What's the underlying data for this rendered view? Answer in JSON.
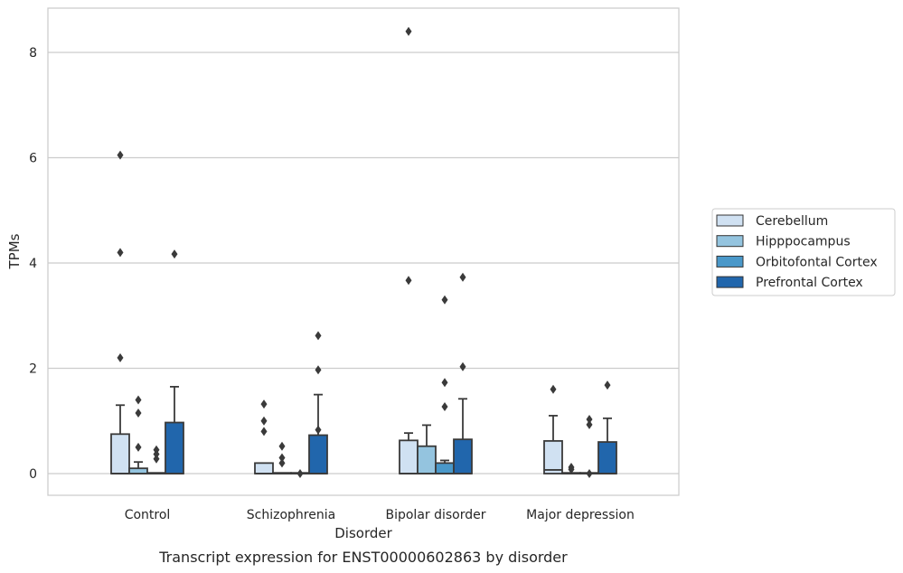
{
  "chart_data": {
    "type": "box",
    "title": "Transcript expression for ENST00000602863 by disorder",
    "xlabel": "Disorder",
    "ylabel": "TPMs",
    "ylim": [
      -0.4,
      8.85
    ],
    "yticks": [
      0,
      2,
      4,
      6,
      8
    ],
    "grid": "horizontal",
    "legend_position": "right",
    "categories": [
      "Control",
      "Schizophrenia",
      "Bipolar disorder",
      "Major depression"
    ],
    "series": [
      {
        "name": "Cerebellum",
        "color": "#d0e1f2",
        "boxes": [
          {
            "q1": 0,
            "median": 0,
            "q3": 0.75,
            "whisker_low": 0,
            "whisker_high": 1.3,
            "outliers": [
              2.2,
              4.2,
              6.05
            ]
          },
          {
            "q1": 0,
            "median": 0,
            "q3": 0.2,
            "whisker_low": 0,
            "whisker_high": 0.2,
            "outliers": [
              0.8,
              1.0,
              1.32
            ]
          },
          {
            "q1": 0,
            "median": 0,
            "q3": 0.63,
            "whisker_low": 0,
            "whisker_high": 0.77,
            "outliers": [
              3.67,
              8.4
            ]
          },
          {
            "q1": 0,
            "median": 0.07,
            "q3": 0.62,
            "whisker_low": 0,
            "whisker_high": 1.1,
            "outliers": [
              1.6
            ]
          }
        ]
      },
      {
        "name": "Hipppocampus",
        "color": "#94c4df",
        "boxes": [
          {
            "q1": 0,
            "median": 0,
            "q3": 0.1,
            "whisker_low": 0,
            "whisker_high": 0.22,
            "outliers": [
              0.5,
              1.15,
              1.4
            ]
          },
          {
            "q1": 0,
            "median": 0,
            "q3": 0,
            "whisker_low": 0,
            "whisker_high": 0,
            "outliers": [
              0.2,
              0.3,
              0.52
            ]
          },
          {
            "q1": 0,
            "median": 0,
            "q3": 0.52,
            "whisker_low": 0,
            "whisker_high": 0.92,
            "outliers": []
          },
          {
            "q1": 0,
            "median": 0,
            "q3": 0,
            "whisker_low": 0,
            "whisker_high": 0,
            "outliers": [
              0.08,
              0.12
            ]
          }
        ]
      },
      {
        "name": "Orbitofontal Cortex",
        "color": "#4a98c9",
        "boxes": [
          {
            "q1": 0,
            "median": 0,
            "q3": 0,
            "whisker_low": 0,
            "whisker_high": 0,
            "outliers": [
              0.28,
              0.37,
              0.45
            ]
          },
          {
            "q1": 0,
            "median": 0,
            "q3": 0,
            "whisker_low": 0,
            "whisker_high": 0,
            "outliers": [
              0.0
            ]
          },
          {
            "q1": 0,
            "median": 0,
            "q3": 0.2,
            "whisker_low": 0,
            "whisker_high": 0.25,
            "outliers": [
              1.27,
              1.73,
              3.3
            ]
          },
          {
            "q1": 0,
            "median": 0,
            "q3": 0,
            "whisker_low": 0,
            "whisker_high": 0,
            "outliers": [
              0.0,
              0.93,
              1.03
            ]
          }
        ]
      },
      {
        "name": "Prefrontal Cortex",
        "color": "#2166ac",
        "boxes": [
          {
            "q1": 0,
            "median": 0,
            "q3": 0.97,
            "whisker_low": 0,
            "whisker_high": 1.65,
            "outliers": [
              4.17
            ]
          },
          {
            "q1": 0,
            "median": 0,
            "q3": 0.73,
            "whisker_low": 0,
            "whisker_high": 1.5,
            "outliers": [
              0.83,
              1.97,
              2.62
            ]
          },
          {
            "q1": 0,
            "median": 0,
            "q3": 0.65,
            "whisker_low": 0,
            "whisker_high": 1.42,
            "outliers": [
              2.03,
              3.73
            ]
          },
          {
            "q1": 0,
            "median": 0,
            "q3": 0.6,
            "whisker_low": 0,
            "whisker_high": 1.05,
            "outliers": [
              1.68
            ]
          }
        ]
      }
    ]
  }
}
